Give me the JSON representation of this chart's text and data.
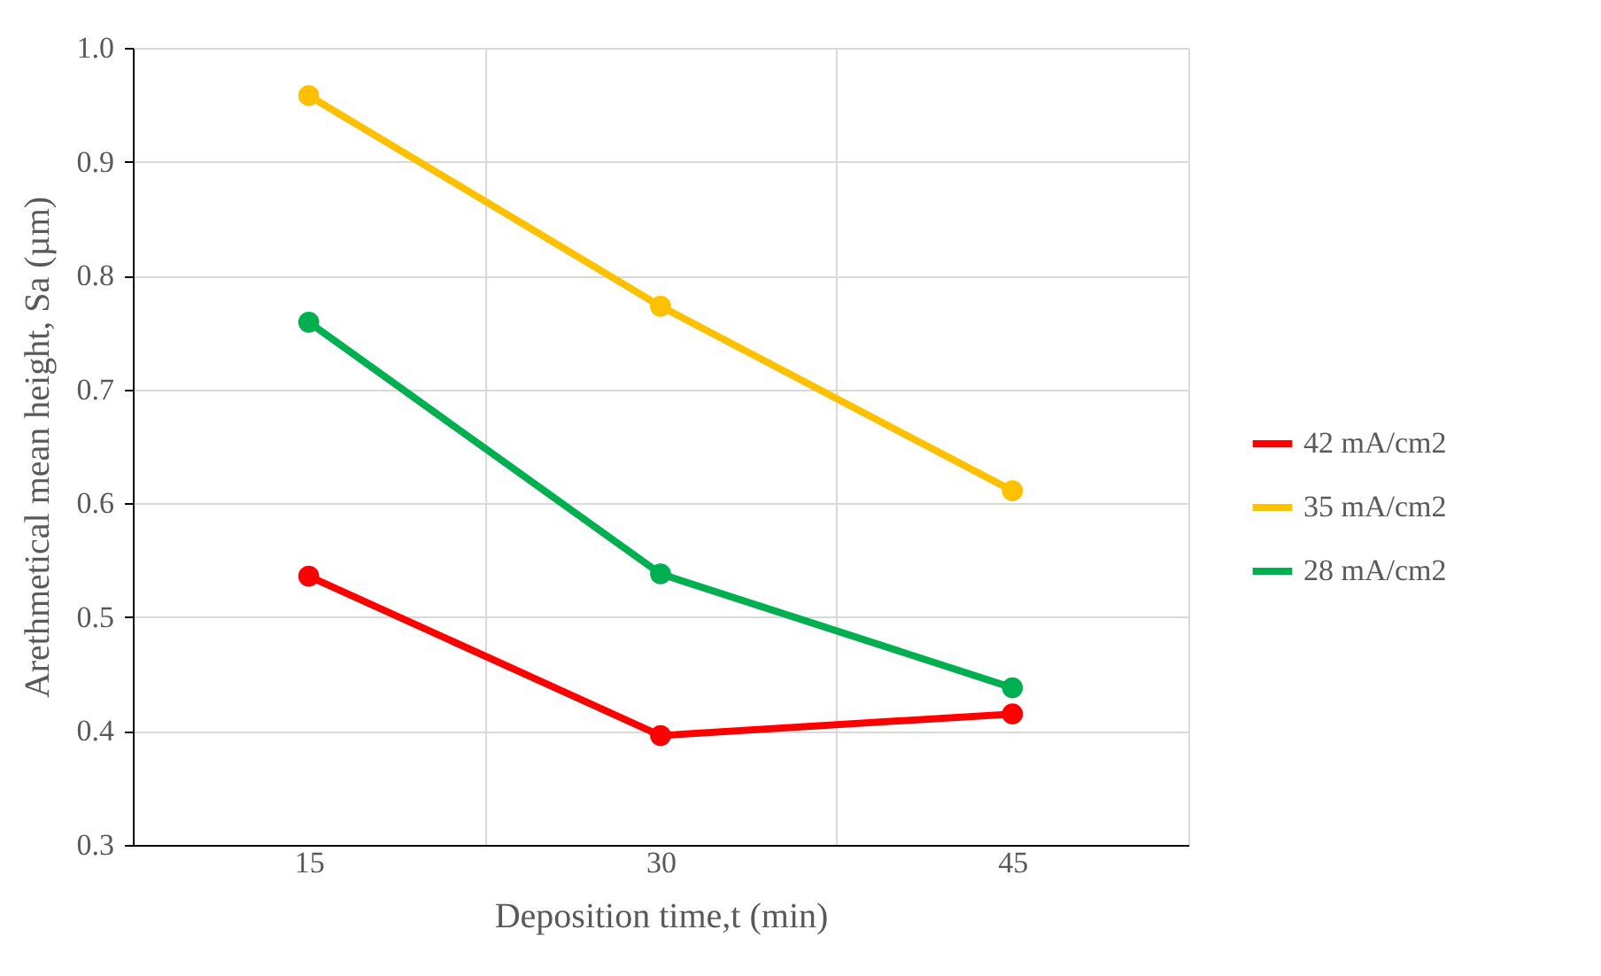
{
  "chart_data": {
    "type": "line",
    "xlabel": "Deposition time,t (min)",
    "ylabel": "Arethmetical mean height, Sa (µm)",
    "categories": [
      "15",
      "30",
      "45"
    ],
    "ylim": [
      0.3,
      1.0
    ],
    "yticks": [
      {
        "value": 0.3,
        "label": "0.3"
      },
      {
        "value": 0.4,
        "label": "0.4"
      },
      {
        "value": 0.5,
        "label": "0.5"
      },
      {
        "value": 0.6,
        "label": "0.6"
      },
      {
        "value": 0.7,
        "label": "0.7"
      },
      {
        "value": 0.8,
        "label": "0.8"
      },
      {
        "value": 0.9,
        "label": "0.9"
      },
      {
        "value": 1.0,
        "label": "1.0"
      }
    ],
    "grid": true,
    "legend": "right",
    "marker": "circle",
    "line_style": "solid",
    "series": [
      {
        "name": "42 mA/cm2",
        "color": "#ff0000",
        "values": [
          0.536,
          0.396,
          0.415
        ]
      },
      {
        "name": "35 mA/cm2",
        "color": "#ffc000",
        "values": [
          0.958,
          0.773,
          0.611
        ]
      },
      {
        "name": "28 mA/cm2",
        "color": "#00b050",
        "values": [
          0.759,
          0.538,
          0.438
        ]
      }
    ]
  }
}
